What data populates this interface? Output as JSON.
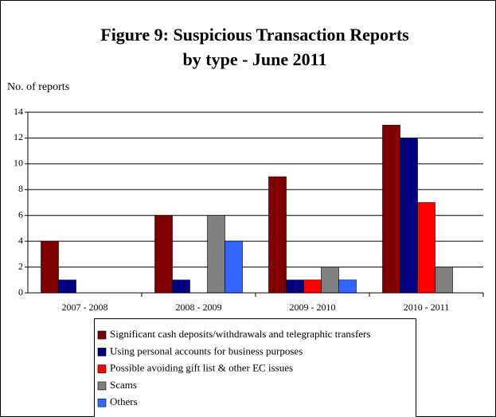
{
  "chart_data": {
    "type": "bar",
    "title": [
      "Figure 9: Suspicious Transaction Reports",
      "by type - June 2011"
    ],
    "y_label": "No. of reports",
    "categories": [
      "2007 - 2008",
      "2008 - 2009",
      "2009 - 2010",
      "2010 - 2011"
    ],
    "series": [
      {
        "name": "Significant cash deposits/withdrawals and telegraphic transfers",
        "color": "#800000",
        "values": [
          4,
          6,
          9,
          13
        ]
      },
      {
        "name": "Using personal accounts for business purposes",
        "color": "#000080",
        "values": [
          1,
          1,
          1,
          12
        ]
      },
      {
        "name": "Possible avoiding gift list & other EC issues",
        "color": "#ff0000",
        "values": [
          0,
          0,
          1,
          7
        ]
      },
      {
        "name": "Scams",
        "color": "#808080",
        "values": [
          0,
          6,
          2,
          2
        ]
      },
      {
        "name": "Others",
        "color": "#3366ff",
        "values": [
          0,
          4,
          1,
          0
        ]
      }
    ],
    "ylim": [
      0,
      14
    ],
    "yticks": [
      0,
      2,
      4,
      6,
      8,
      10,
      12,
      14
    ],
    "grid": true
  }
}
